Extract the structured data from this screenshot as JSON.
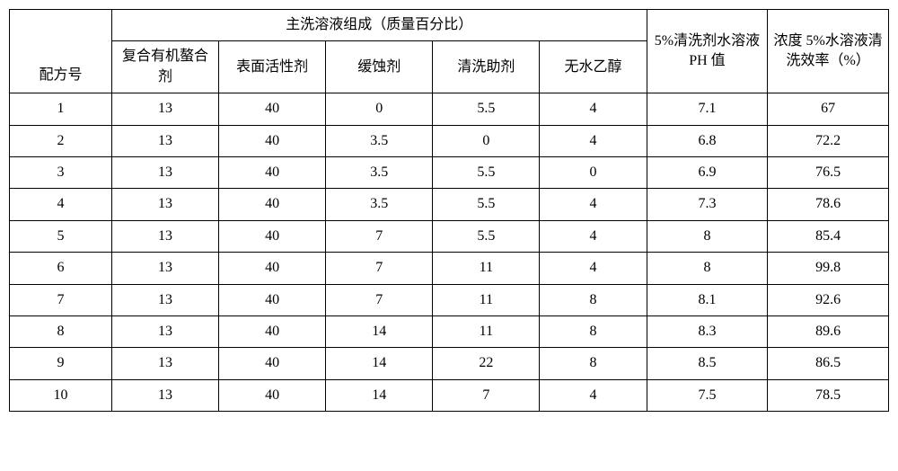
{
  "table": {
    "font_size_pt": 16,
    "colors": {
      "border": "#000000",
      "background": "#ffffff",
      "text": "#000000"
    },
    "header": {
      "row_label": "配方号",
      "composition_group": "主洗溶液组成（质量百分比）",
      "comp_cols": [
        "复合有机螯合剂",
        "表面活性剂",
        "缓蚀剂",
        "清洗助剂",
        "无水乙醇"
      ],
      "ph_col": "5%清洗剂水溶液PH 值",
      "eff_col": "浓度 5%水溶液清洗效率（%）"
    },
    "rows": [
      {
        "id": "1",
        "c": [
          "13",
          "40",
          "0",
          "5.5",
          "4"
        ],
        "ph": "7.1",
        "eff": "67"
      },
      {
        "id": "2",
        "c": [
          "13",
          "40",
          "3.5",
          "0",
          "4"
        ],
        "ph": "6.8",
        "eff": "72.2"
      },
      {
        "id": "3",
        "c": [
          "13",
          "40",
          "3.5",
          "5.5",
          "0"
        ],
        "ph": "6.9",
        "eff": "76.5"
      },
      {
        "id": "4",
        "c": [
          "13",
          "40",
          "3.5",
          "5.5",
          "4"
        ],
        "ph": "7.3",
        "eff": "78.6"
      },
      {
        "id": "5",
        "c": [
          "13",
          "40",
          "7",
          "5.5",
          "4"
        ],
        "ph": "8",
        "eff": "85.4"
      },
      {
        "id": "6",
        "c": [
          "13",
          "40",
          "7",
          "11",
          "4"
        ],
        "ph": "8",
        "eff": "99.8"
      },
      {
        "id": "7",
        "c": [
          "13",
          "40",
          "7",
          "11",
          "8"
        ],
        "ph": "8.1",
        "eff": "92.6"
      },
      {
        "id": "8",
        "c": [
          "13",
          "40",
          "14",
          "11",
          "8"
        ],
        "ph": "8.3",
        "eff": "89.6"
      },
      {
        "id": "9",
        "c": [
          "13",
          "40",
          "14",
          "22",
          "8"
        ],
        "ph": "8.5",
        "eff": "86.5"
      },
      {
        "id": "10",
        "c": [
          "13",
          "40",
          "14",
          "7",
          "4"
        ],
        "ph": "7.5",
        "eff": "78.5"
      }
    ]
  }
}
